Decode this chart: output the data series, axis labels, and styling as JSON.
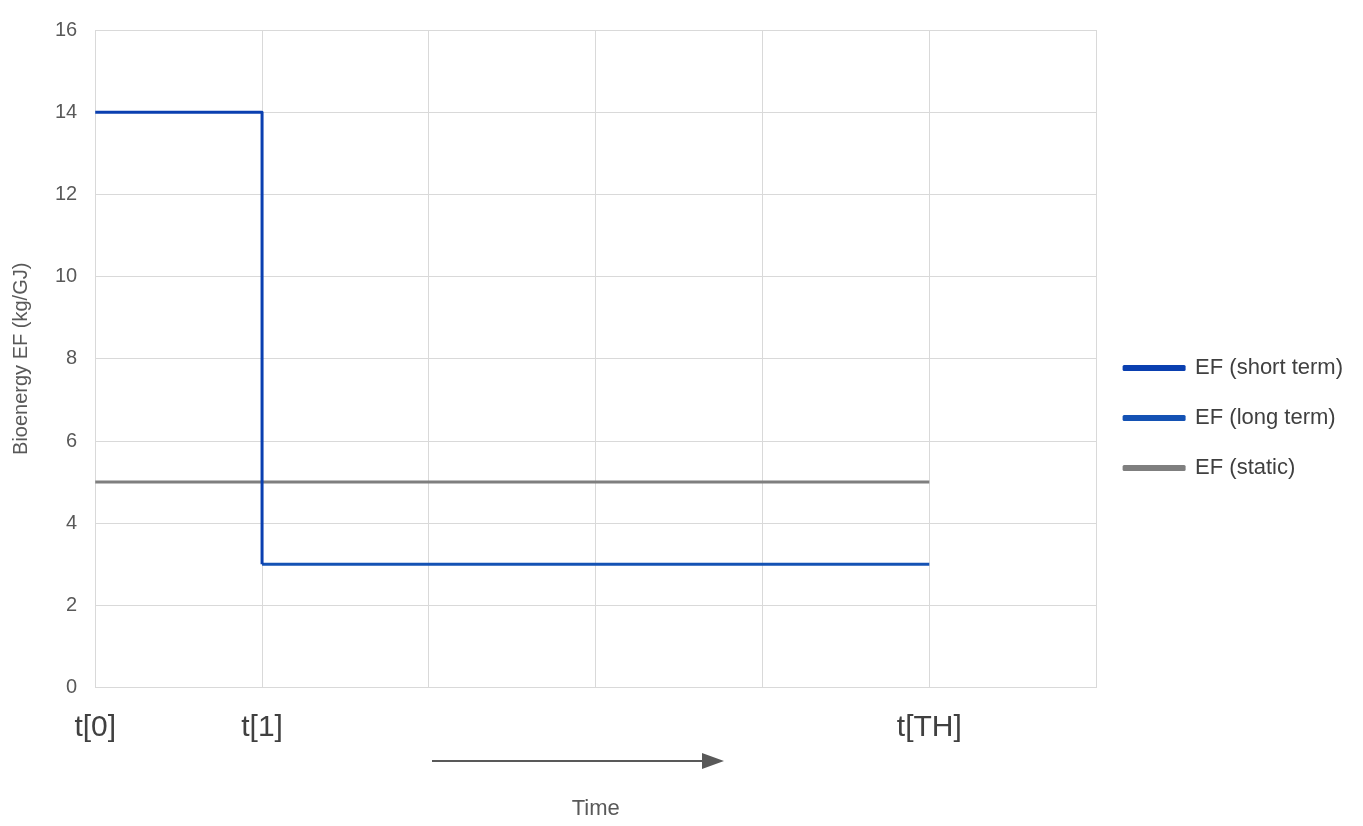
{
  "chart_data": {
    "type": "step",
    "xlabel": "Time",
    "ylabel": "Bioenergy EF (kg/GJ)",
    "categories": [
      "t[0]",
      "t[1]",
      null,
      null,
      null,
      "t[TH]",
      null
    ],
    "series": [
      {
        "name": "EF (short term)",
        "color": "#0a3fb0",
        "values": [
          14,
          3,
          null,
          null,
          null,
          null,
          null
        ]
      },
      {
        "name": "EF (long term)",
        "color": "#1452b4",
        "values": [
          null,
          3,
          3,
          3,
          3,
          3,
          null
        ]
      },
      {
        "name": "EF (static)",
        "color": "#7f7f7f",
        "values": [
          5,
          5,
          5,
          5,
          5,
          5,
          null
        ]
      }
    ],
    "ylim": [
      0,
      16
    ],
    "yticks": [
      0,
      2,
      4,
      6,
      8,
      10,
      12,
      14,
      16
    ],
    "grid": true,
    "legend": "right"
  }
}
